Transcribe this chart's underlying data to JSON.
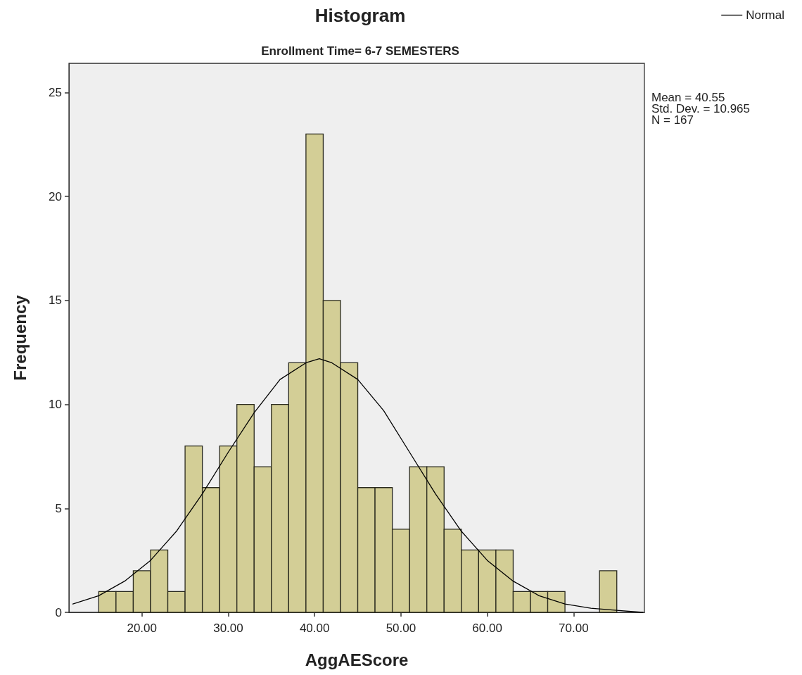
{
  "chart_data": {
    "type": "histogram",
    "title": "Histogram",
    "subtitle": "Enrollment Time= 6-7 SEMESTERS",
    "xlabel": "AggAEScore",
    "ylabel": "Frequency",
    "bins": [
      15,
      17,
      19,
      21,
      23,
      25,
      27,
      29,
      31,
      33,
      35,
      37,
      39,
      41,
      43,
      45,
      47,
      49,
      51,
      53,
      55,
      57,
      59,
      61,
      63,
      65,
      67,
      69,
      71,
      73,
      75
    ],
    "values": [
      1,
      1,
      2,
      3,
      1,
      8,
      6,
      8,
      10,
      7,
      10,
      12,
      23,
      15,
      12,
      6,
      6,
      4,
      7,
      7,
      4,
      3,
      3,
      3,
      1,
      1,
      1,
      0,
      0,
      2
    ],
    "color": "#d3ce96",
    "series": [
      {
        "name": "Normal",
        "type": "line",
        "color": "#000000",
        "x": [
          12,
          15,
          18,
          21,
          24,
          27,
          30,
          33,
          36,
          39,
          40.55,
          42,
          45,
          48,
          51,
          54,
          57,
          60,
          63,
          66,
          69,
          72,
          75,
          78
        ],
        "values": [
          0.4,
          0.8,
          1.5,
          2.5,
          3.9,
          5.7,
          7.7,
          9.6,
          11.2,
          12.0,
          12.2,
          12.0,
          11.2,
          9.7,
          7.7,
          5.7,
          3.9,
          2.5,
          1.5,
          0.8,
          0.4,
          0.2,
          0.1,
          0.0
        ]
      }
    ],
    "xlim": [
      11.55,
      78.2
    ],
    "xticks": [
      {
        "value": 20,
        "label": "20.00"
      },
      {
        "value": 30,
        "label": "30.00"
      },
      {
        "value": 40,
        "label": "40.00"
      },
      {
        "value": 50,
        "label": "50.00"
      },
      {
        "value": 60,
        "label": "60.00"
      },
      {
        "value": 70,
        "label": "70.00"
      }
    ],
    "ylim": [
      0,
      26.4
    ],
    "yticks": [
      0,
      5,
      10,
      15,
      20,
      25
    ],
    "annotations": [
      "Mean = 40.55",
      "Std. Dev. = 10.965",
      "N = 167"
    ],
    "legend": "top right",
    "grid": false,
    "marker": "none",
    "line_style": "solid"
  }
}
